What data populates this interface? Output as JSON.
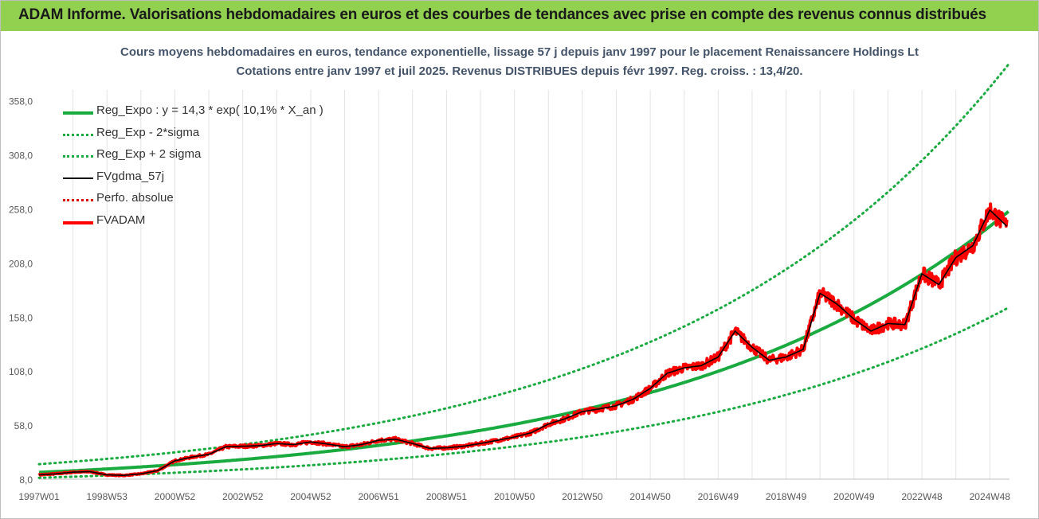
{
  "header": {
    "banner": "ADAM Informe. Valorisations hebdomadaires en euros et des courbes de tendances avec prise en compte des revenus connus distribués"
  },
  "chart_data": {
    "type": "line",
    "title": "Cours moyens hebdomadaires en euros, tendance exponentielle, lissage 57 j depuis janv 1997 pour le placement Renaissancere Holdings Lt",
    "subtitle": "Cotations entre janv 1997 et juil 2025. Revenus DISTRIBUES depuis févr 1997. Reg. croiss. : 13,4/20.",
    "xlabel": "",
    "ylabel": "",
    "ylim": [
      8,
      368
    ],
    "yticks": [
      "8,0",
      "58,0",
      "108,0",
      "158,0",
      "208,0",
      "258,0",
      "308,0",
      "358,0"
    ],
    "xticks": [
      "1997W01",
      "1998W53",
      "2000W52",
      "2002W52",
      "2004W52",
      "2006W51",
      "2008W51",
      "2010W50",
      "2012W50",
      "2014W50",
      "2016W49",
      "2018W49",
      "2020W49",
      "2022W48",
      "2024W48"
    ],
    "xticks_years": [
      1997.0,
      1999.0,
      2001.0,
      2003.0,
      2005.0,
      2007.0,
      2009.0,
      2011.0,
      2013.0,
      2015.0,
      2017.0,
      2019.0,
      2021.0,
      2023.0,
      2025.0
    ],
    "xlim": [
      1997.0,
      2025.58
    ],
    "grid": "vertical",
    "legend_position": "top-left",
    "trend_formula": {
      "a": 14.3,
      "rate": 0.101
    },
    "series": [
      {
        "name": "Reg_Expo : y = 14,3 * exp( 10,1% *  X_an )",
        "color": "#1aab40",
        "style": "solid-thick",
        "kind": "trend",
        "x": [
          1997,
          2001,
          2005,
          2009,
          2013,
          2017,
          2021,
          2025.58
        ],
        "y": [
          14.3,
          21.4,
          32.0,
          47.9,
          71.6,
          107.2,
          160.4,
          250.0
        ]
      },
      {
        "name": "Reg_Exp - 2*sigma",
        "color": "#1aab40",
        "style": "dotted",
        "kind": "lower",
        "x": [
          1997,
          2001,
          2005,
          2009,
          2013,
          2017,
          2021,
          2025.58
        ],
        "y": [
          9.3,
          14.0,
          20.9,
          31.2,
          46.7,
          69.9,
          104.6,
          163.0
        ]
      },
      {
        "name": "Reg_Exp + 2 sigma",
        "color": "#1aab40",
        "style": "dotted",
        "kind": "upper",
        "x": [
          1997,
          2001,
          2005,
          2009,
          2013,
          2017,
          2021,
          2025.58
        ],
        "y": [
          21.9,
          32.8,
          49.1,
          73.4,
          109.9,
          164.4,
          246.0,
          383.0
        ]
      },
      {
        "name": "FVgdma_57j",
        "color": "#000000",
        "style": "solid",
        "kind": "smooth",
        "x": [
          1997.0,
          1997.5,
          1998.0,
          1998.5,
          1999.0,
          1999.5,
          2000.0,
          2000.5,
          2001.0,
          2001.5,
          2002.0,
          2002.5,
          2003.0,
          2003.5,
          2004.0,
          2004.5,
          2005.0,
          2005.5,
          2006.0,
          2006.5,
          2007.0,
          2007.5,
          2008.0,
          2008.5,
          2009.0,
          2009.5,
          2010.0,
          2010.5,
          2011.0,
          2011.5,
          2012.0,
          2012.5,
          2013.0,
          2013.5,
          2014.0,
          2014.5,
          2015.0,
          2015.5,
          2016.0,
          2016.5,
          2017.0,
          2017.5,
          2018.0,
          2018.5,
          2019.0,
          2019.5,
          2020.0,
          2020.5,
          2021.0,
          2021.5,
          2022.0,
          2022.5,
          2023.0,
          2023.5,
          2024.0,
          2024.5,
          2025.0,
          2025.5
        ],
        "y": [
          12.0,
          13.0,
          14.5,
          15.0,
          12.0,
          11.5,
          13.0,
          16.0,
          25.0,
          28.5,
          31.0,
          38.0,
          38.5,
          39.0,
          41.0,
          40.0,
          42.5,
          40.5,
          38.0,
          40.0,
          44.0,
          45.0,
          41.0,
          36.5,
          37.0,
          38.5,
          41.0,
          44.0,
          47.0,
          51.0,
          59.0,
          64.0,
          70.5,
          73.0,
          76.0,
          82.0,
          92.0,
          106.0,
          111.0,
          113.0,
          121.0,
          145.0,
          130.0,
          118.0,
          121.0,
          128.0,
          180.0,
          170.0,
          156.0,
          145.0,
          152.0,
          151.0,
          198.0,
          188.0,
          213.0,
          224.0,
          257.0,
          242.0
        ]
      },
      {
        "name": "Perfo. absolue",
        "color": "#e00000",
        "style": "dotted",
        "kind": "none",
        "x": [],
        "y": []
      },
      {
        "name": "FVADAM",
        "color": "#ff0000",
        "style": "solid-thick",
        "kind": "raw",
        "x": [
          1997.0,
          1997.5,
          1998.0,
          1998.5,
          1999.0,
          1999.5,
          2000.0,
          2000.5,
          2001.0,
          2001.5,
          2002.0,
          2002.5,
          2003.0,
          2003.5,
          2004.0,
          2004.5,
          2005.0,
          2005.5,
          2006.0,
          2006.5,
          2007.0,
          2007.5,
          2008.0,
          2008.5,
          2009.0,
          2009.5,
          2010.0,
          2010.5,
          2011.0,
          2011.5,
          2012.0,
          2012.5,
          2013.0,
          2013.5,
          2014.0,
          2014.5,
          2015.0,
          2015.5,
          2016.0,
          2016.5,
          2017.0,
          2017.5,
          2018.0,
          2018.5,
          2019.0,
          2019.5,
          2020.0,
          2020.5,
          2021.0,
          2021.5,
          2022.0,
          2022.5,
          2023.0,
          2023.5,
          2024.0,
          2024.5,
          2025.0,
          2025.5
        ],
        "y": [
          12.0,
          13.0,
          14.5,
          15.0,
          12.0,
          11.5,
          13.0,
          16.0,
          25.0,
          28.5,
          31.0,
          38.0,
          38.5,
          39.0,
          41.0,
          40.0,
          42.5,
          40.5,
          38.0,
          40.0,
          44.0,
          45.0,
          41.0,
          36.5,
          37.0,
          38.5,
          41.0,
          44.0,
          47.0,
          51.0,
          59.0,
          64.0,
          70.5,
          73.0,
          76.0,
          82.0,
          92.0,
          106.0,
          111.0,
          113.0,
          121.0,
          145.0,
          130.0,
          118.0,
          121.0,
          128.0,
          180.0,
          170.0,
          156.0,
          145.0,
          152.0,
          151.0,
          198.0,
          188.0,
          213.0,
          224.0,
          257.0,
          242.0
        ]
      }
    ]
  }
}
